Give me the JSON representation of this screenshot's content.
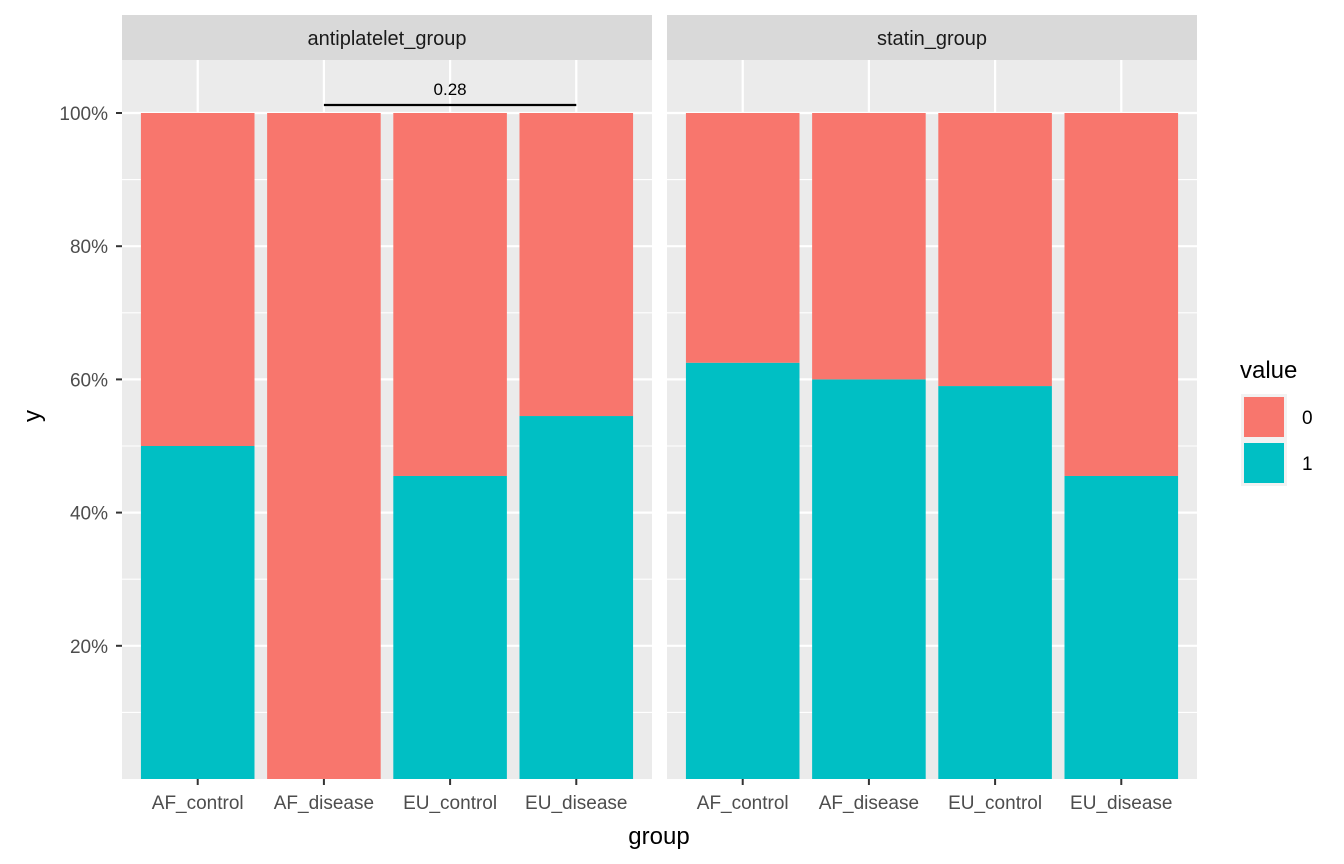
{
  "chart_data": {
    "type": "bar",
    "stacked": true,
    "title": "",
    "xlabel": "group",
    "ylabel": "y",
    "ylim": [
      0,
      1.1
    ],
    "y_ticks": [
      0.2,
      0.4,
      0.6,
      0.8,
      1.0
    ],
    "y_tick_labels": [
      "20%",
      "40%",
      "60%",
      "80%",
      "100%"
    ],
    "categories": [
      "AF_control",
      "AF_disease",
      "EU_control",
      "EU_disease"
    ],
    "legend": {
      "title": "value",
      "position": "right",
      "entries": [
        {
          "label": "0",
          "color": "#F8766D"
        },
        {
          "label": "1",
          "color": "#00BFC4"
        }
      ]
    },
    "facets": [
      {
        "label": "antiplatelet_group",
        "series": [
          {
            "name": "1",
            "color": "#00BFC4",
            "values": [
              0.5,
              0.0,
              0.455,
              0.545
            ]
          },
          {
            "name": "0",
            "color": "#F8766D",
            "values": [
              0.5,
              1.0,
              0.545,
              0.455
            ]
          }
        ],
        "annotation": {
          "from": "AF_disease",
          "to": "EU_disease",
          "y": 1.012,
          "label": "0.28"
        }
      },
      {
        "label": "statin_group",
        "series": [
          {
            "name": "1",
            "color": "#00BFC4",
            "values": [
              0.625,
              0.6,
              0.59,
              0.455
            ]
          },
          {
            "name": "0",
            "color": "#F8766D",
            "values": [
              0.375,
              0.4,
              0.41,
              0.545
            ]
          }
        ],
        "annotation": null
      }
    ]
  }
}
